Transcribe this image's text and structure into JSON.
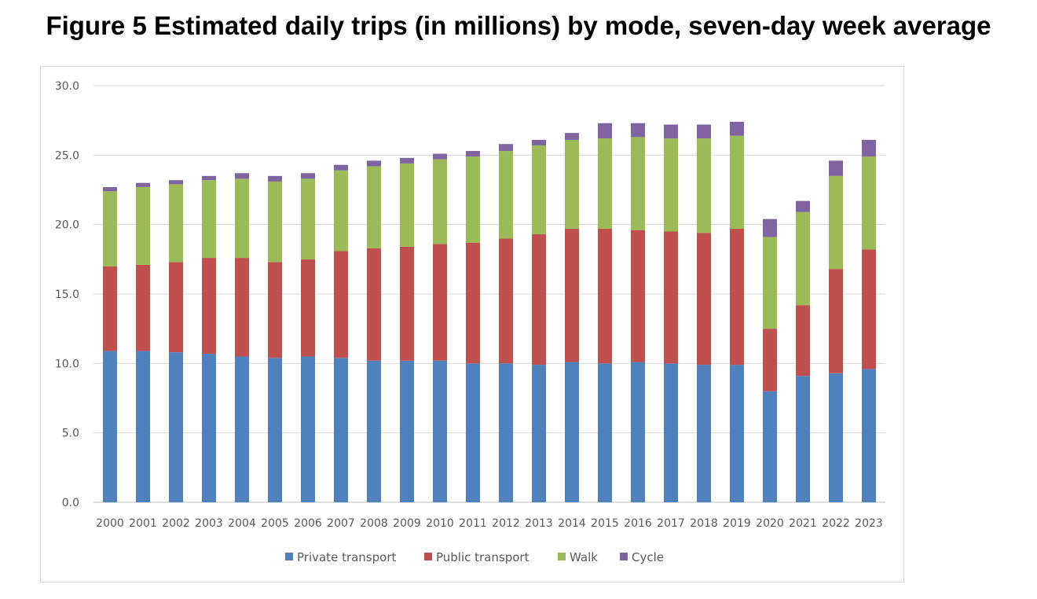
{
  "figure": {
    "title": "Figure 5 Estimated daily trips (in millions) by mode, seven-day week average"
  },
  "chart_data": {
    "type": "bar",
    "stacked": true,
    "title": "Figure 5 Estimated daily trips (in millions) by mode, seven-day week average",
    "xlabel": "",
    "ylabel": "",
    "ylim": [
      0,
      30
    ],
    "yticks": [
      "0.0",
      "5.0",
      "10.0",
      "15.0",
      "20.0",
      "25.0",
      "30.0"
    ],
    "grid": true,
    "legend_position": "bottom",
    "categories": [
      "2000",
      "2001",
      "2002",
      "2003",
      "2004",
      "2005",
      "2006",
      "2007",
      "2008",
      "2009",
      "2010",
      "2011",
      "2012",
      "2013",
      "2014",
      "2015",
      "2016",
      "2017",
      "2018",
      "2019",
      "2020",
      "2021",
      "2022",
      "2023"
    ],
    "series": [
      {
        "name": "Private transport",
        "color": "#4f81bd",
        "values": [
          10.9,
          10.9,
          10.8,
          10.7,
          10.5,
          10.4,
          10.5,
          10.4,
          10.2,
          10.2,
          10.2,
          10.0,
          10.0,
          9.9,
          10.1,
          10.0,
          10.1,
          10.0,
          9.9,
          9.9,
          8.0,
          9.1,
          9.3,
          9.6
        ]
      },
      {
        "name": "Public transport",
        "color": "#c0504d",
        "values": [
          6.1,
          6.2,
          6.5,
          6.9,
          7.1,
          6.9,
          7.0,
          7.7,
          8.1,
          8.2,
          8.4,
          8.7,
          9.0,
          9.4,
          9.6,
          9.7,
          9.5,
          9.5,
          9.5,
          9.8,
          4.5,
          5.1,
          7.5,
          8.6
        ]
      },
      {
        "name": "Walk",
        "color": "#9bbb59",
        "values": [
          5.4,
          5.6,
          5.6,
          5.6,
          5.7,
          5.8,
          5.8,
          5.8,
          5.9,
          6.0,
          6.1,
          6.2,
          6.3,
          6.4,
          6.4,
          6.5,
          6.7,
          6.7,
          6.8,
          6.7,
          6.6,
          6.7,
          6.7,
          6.7
        ]
      },
      {
        "name": "Cycle",
        "color": "#8064a2",
        "values": [
          0.3,
          0.3,
          0.3,
          0.3,
          0.4,
          0.4,
          0.4,
          0.4,
          0.4,
          0.4,
          0.4,
          0.4,
          0.5,
          0.4,
          0.5,
          1.1,
          1.0,
          1.0,
          1.0,
          1.0,
          1.3,
          0.8,
          1.1,
          1.2
        ]
      }
    ]
  }
}
